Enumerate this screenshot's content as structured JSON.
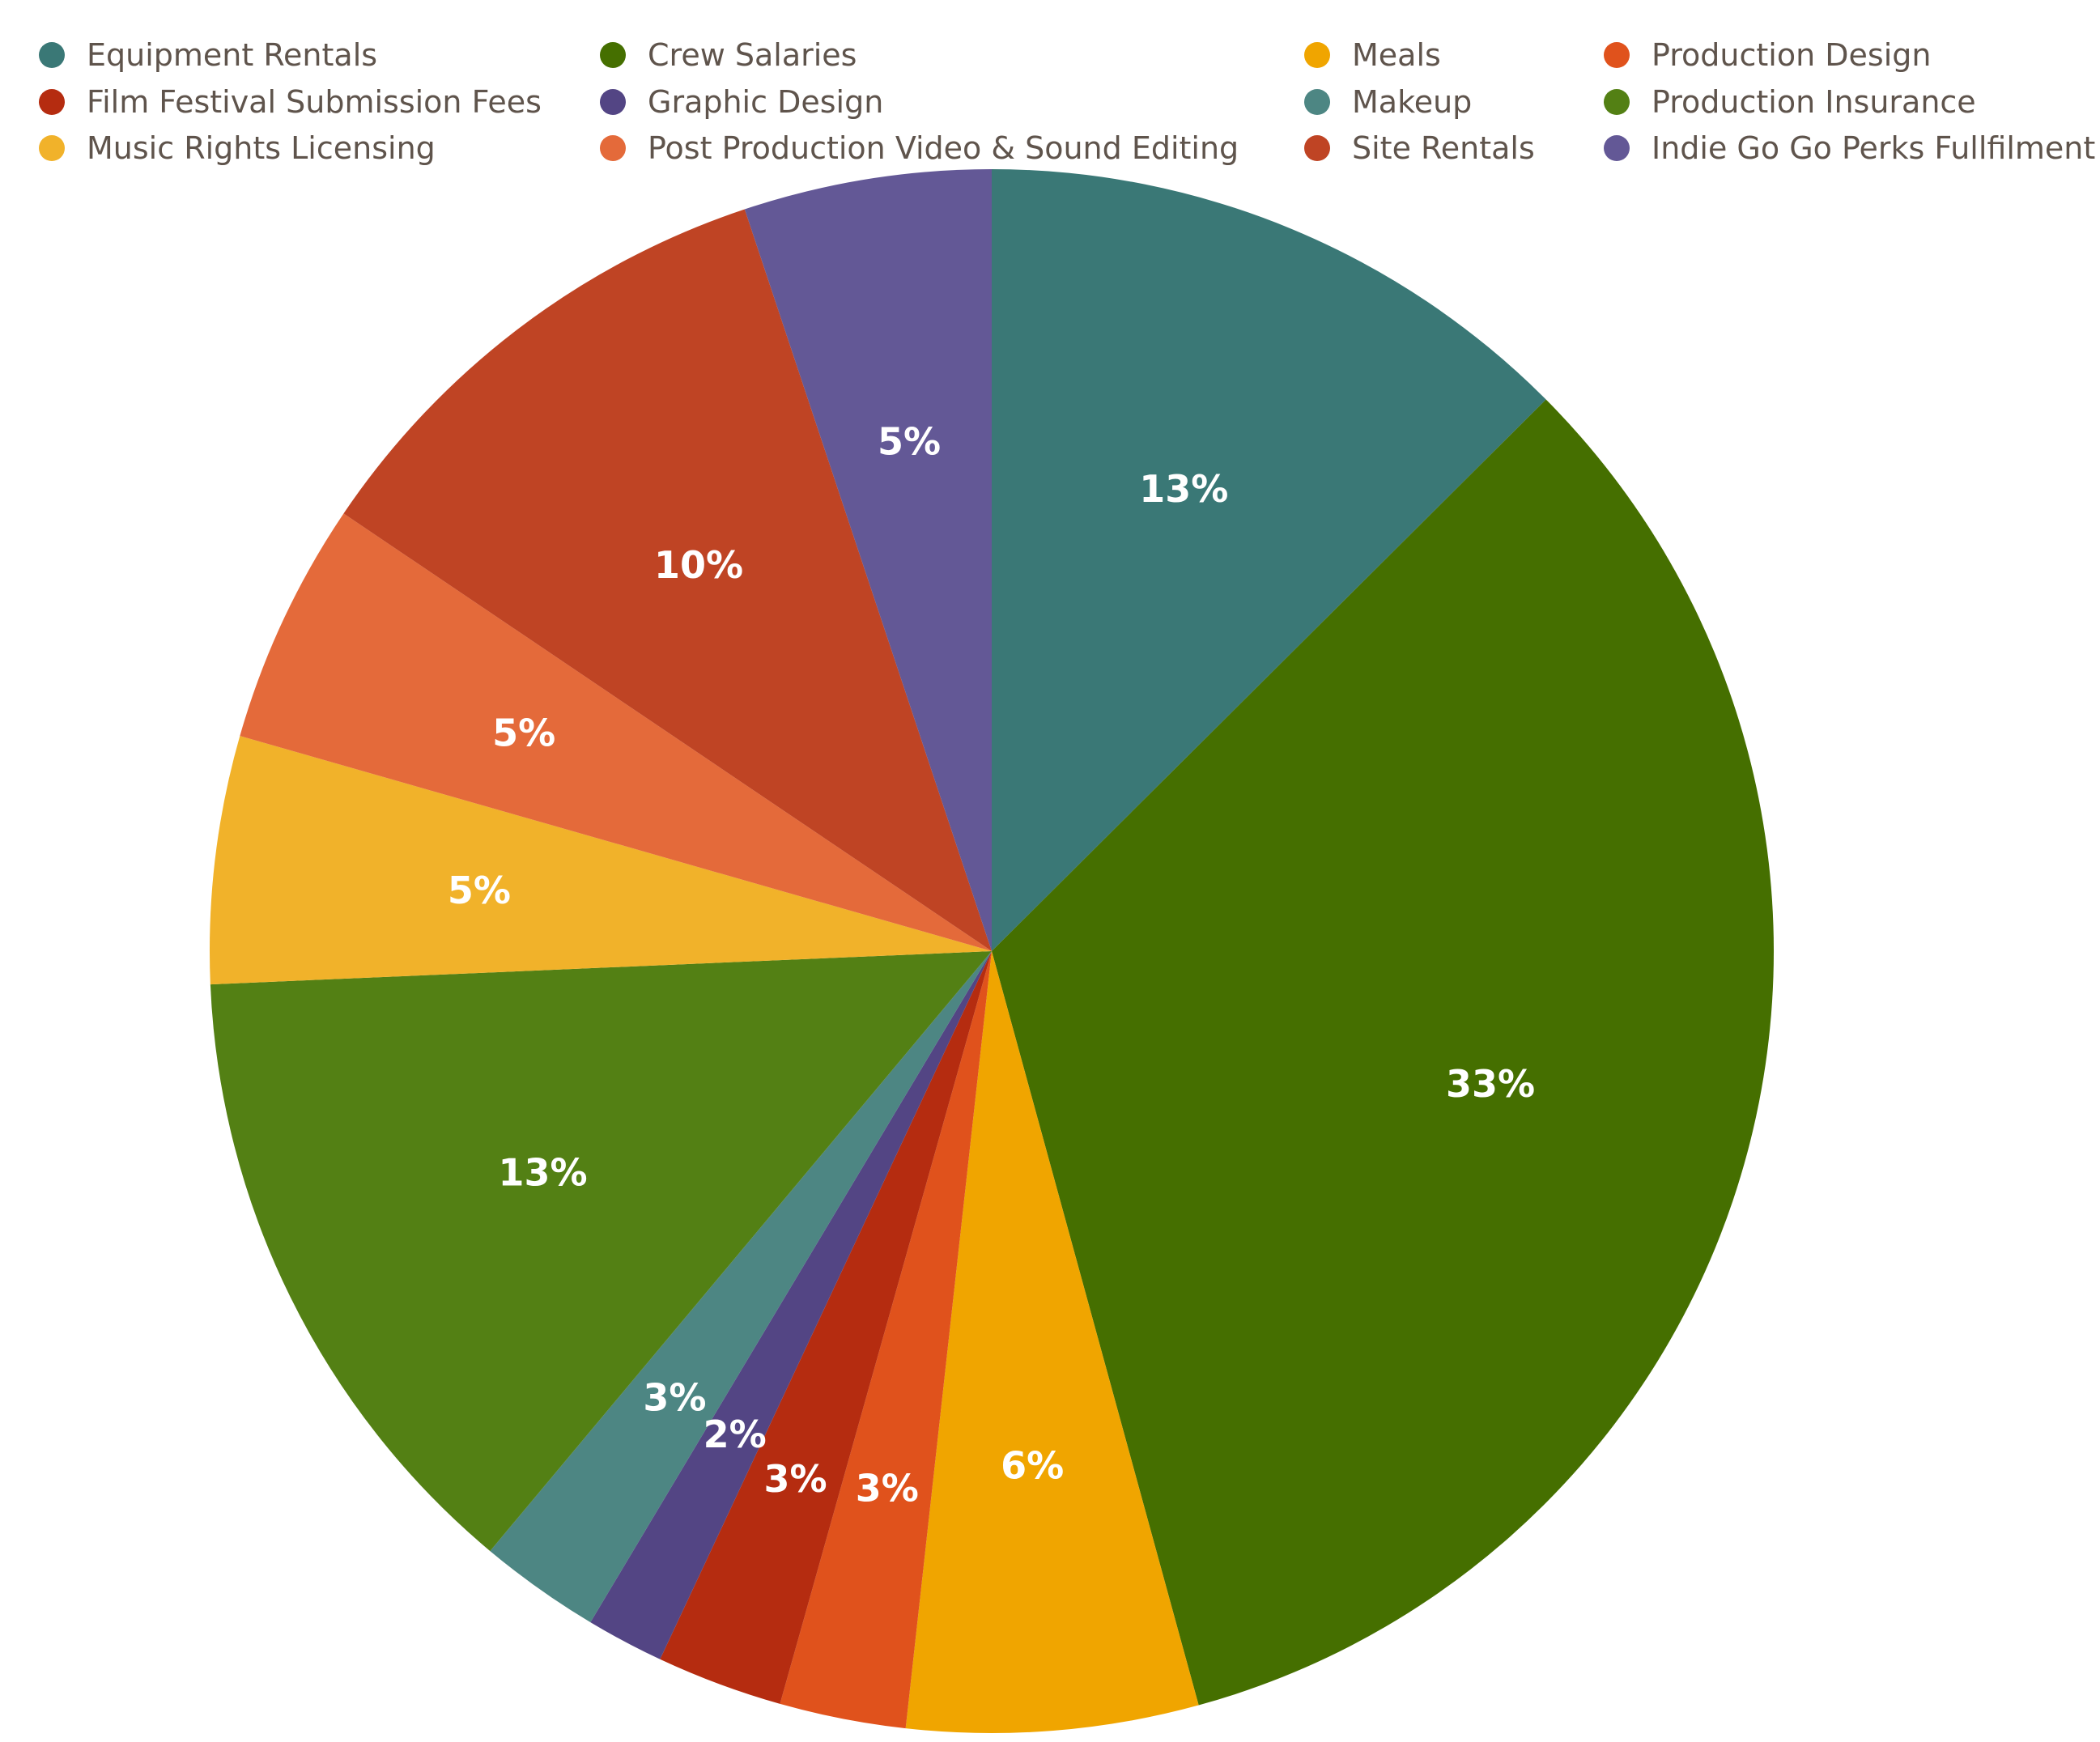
{
  "chart_data": {
    "type": "pie",
    "title": "",
    "legend_position": "top",
    "start_angle": "12 o'clock, clockwise",
    "categories": [
      "Equipment Rentals",
      "Crew Salaries",
      "Meals",
      "Production Design",
      "Film Festival Submission Fees",
      "Graphic Design",
      "Makeup",
      "Production Insurance",
      "Music Rights Licensing",
      "Post Production Video & Sound Editing",
      "Site Rentals",
      "Indie Go Go Perks Fullfilment"
    ],
    "values": [
      12.5,
      33.1,
      6.0,
      2.6,
      2.6,
      1.6,
      2.5,
      13.2,
      5.1,
      5.0,
      10.4,
      5.1
    ],
    "labels": [
      "13%",
      "33%",
      "6%",
      "3%",
      "3%",
      "2%",
      "3%",
      "13%",
      "5%",
      "5%",
      "10%",
      "5%"
    ],
    "colors": [
      "#3a7876",
      "#456f00",
      "#f0a500",
      "#e0521c",
      "#b52c10",
      "#534584",
      "#4d8683",
      "#538014",
      "#f1b22a",
      "#e46a3a",
      "#bf4424",
      "#635896"
    ],
    "legend_order": [
      "Equipment Rentals",
      "Crew Salaries",
      "Meals",
      "Production Design",
      "Film Festival Submission Fees",
      "Graphic Design",
      "Makeup",
      "Production Insurance",
      "Music Rights Licensing",
      "Post Production Video & Sound Editing",
      "Site Rentals",
      "Indie Go Go Perks Fullfilment"
    ]
  }
}
